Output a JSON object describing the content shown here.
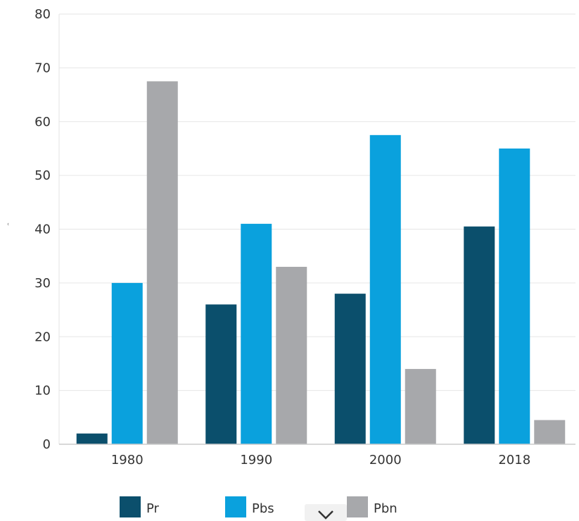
{
  "chart_data": {
    "type": "bar",
    "categories": [
      "1980",
      "1990",
      "2000",
      "2018"
    ],
    "series": [
      {
        "name": "Pr",
        "values": [
          2,
          26,
          28,
          40.5
        ],
        "color": "#0b4f6c"
      },
      {
        "name": "Pbs",
        "values": [
          30,
          41,
          57.5,
          55
        ],
        "color": "#0aa1dd"
      },
      {
        "name": "Pbn",
        "values": [
          67.5,
          33,
          14,
          4.5
        ],
        "color": "#a7a8ab"
      }
    ],
    "ylim": [
      0,
      80
    ],
    "yticks": [
      "0",
      "10",
      "20",
      "30",
      "40",
      "50",
      "60",
      "70",
      "80"
    ],
    "ylabel": "",
    "xlabel": "",
    "title": "",
    "grid": true,
    "legend_position": "bottom"
  },
  "ylabel_glyph": "ʿ",
  "scroll_icon": "chevron-down-icon"
}
